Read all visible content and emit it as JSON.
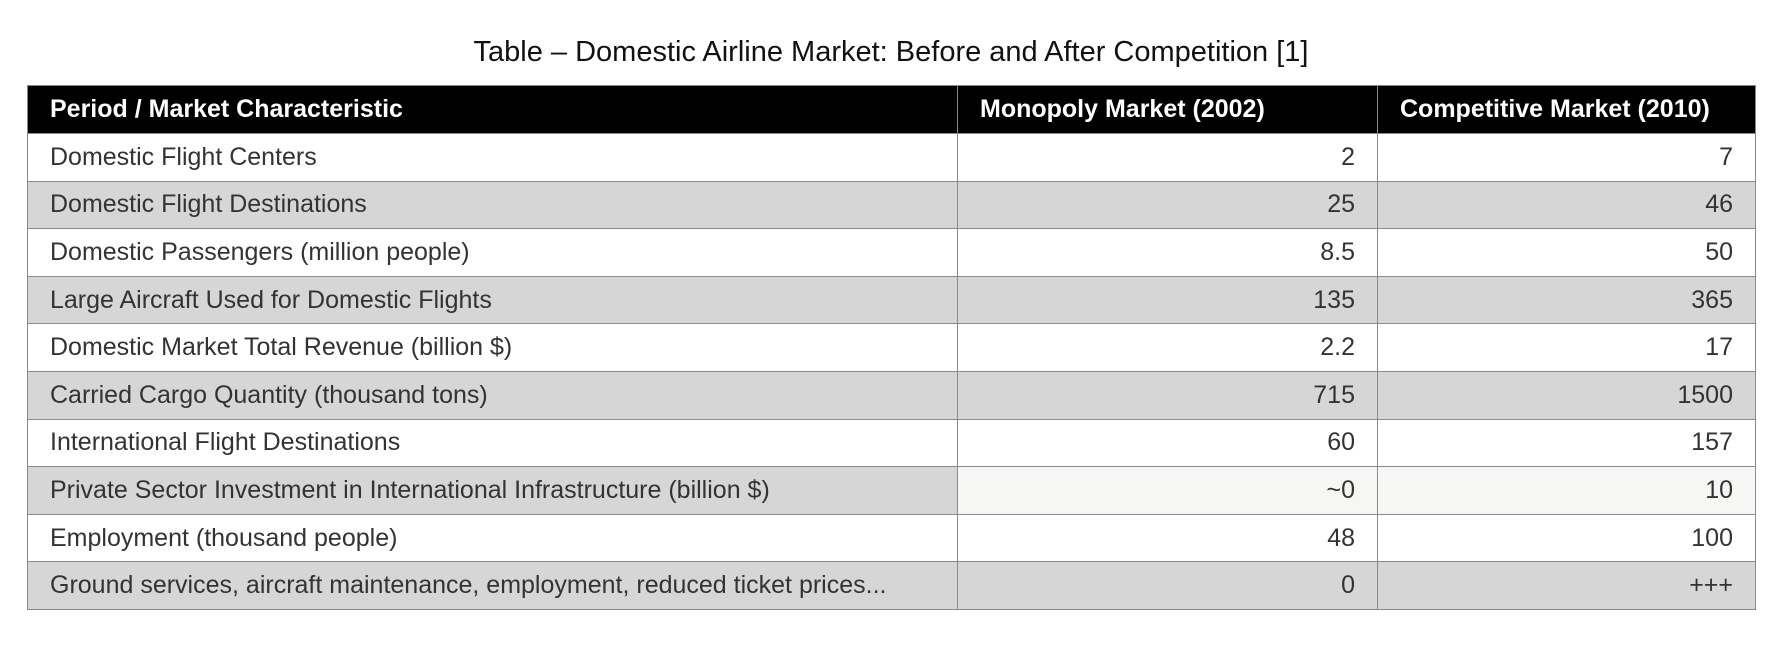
{
  "title": "Table – Domestic Airline Market: Before and After Competition [1]",
  "chart_data": {
    "type": "table",
    "title": "Table – Domestic Airline Market: Before and After Competition [1]",
    "columns": [
      "Period / Market Characteristic",
      "Monopoly Market (2002)",
      "Competitive Market (2010)"
    ],
    "rows": [
      [
        "Domestic Flight Centers",
        "2",
        "7"
      ],
      [
        "Domestic Flight Destinations",
        "25",
        "46"
      ],
      [
        "Domestic Passengers (million people)",
        "8.5",
        "50"
      ],
      [
        "Large Aircraft Used for Domestic Flights",
        "135",
        "365"
      ],
      [
        "Domestic Market Total Revenue (billion $)",
        "2.2",
        "17"
      ],
      [
        "Carried Cargo Quantity (thousand tons)",
        "715",
        "1500"
      ],
      [
        "International Flight Destinations",
        "60",
        "157"
      ],
      [
        "Private Sector Investment in International Infrastructure (billion $)",
        "~0",
        "10"
      ],
      [
        "Employment (thousand people)",
        "48",
        "100"
      ],
      [
        "Ground services, aircraft maintenance, employment, reduced ticket prices...",
        "0",
        "+++"
      ]
    ],
    "colors": {
      "header_bg": "#000000",
      "header_text": "#ffffff",
      "stripe": "#d6d6d6",
      "highlight": "#f6f6f4"
    }
  }
}
